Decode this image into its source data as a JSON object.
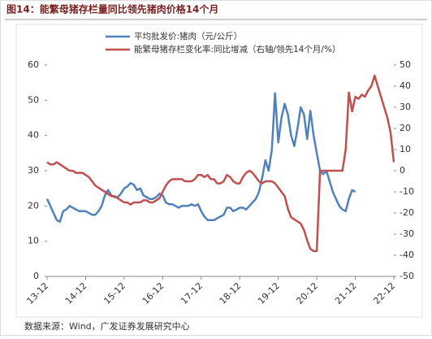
{
  "chart_data": {
    "type": "line",
    "title": "图14：能繁母猪存栏量同比领先猪肉价格14个月",
    "source": "数据来源：Wind，广发证券发展研究中心",
    "categories": [
      "13-12",
      null,
      null,
      null,
      null,
      null,
      null,
      null,
      null,
      null,
      null,
      null,
      "14-12",
      null,
      null,
      null,
      null,
      null,
      null,
      null,
      null,
      null,
      null,
      null,
      "15-12",
      null,
      null,
      null,
      null,
      null,
      null,
      null,
      null,
      null,
      null,
      null,
      "16-12",
      null,
      null,
      null,
      null,
      null,
      null,
      null,
      null,
      null,
      null,
      null,
      "17-12",
      null,
      null,
      null,
      null,
      null,
      null,
      null,
      null,
      null,
      null,
      null,
      "18-12",
      null,
      null,
      null,
      null,
      null,
      null,
      null,
      null,
      null,
      null,
      null,
      "19-12",
      null,
      null,
      null,
      null,
      null,
      null,
      null,
      null,
      null,
      null,
      null,
      "20-12",
      null,
      null,
      null,
      null,
      null,
      null,
      null,
      null,
      null,
      null,
      null,
      "21-12",
      null,
      null,
      null,
      null,
      null,
      null,
      null,
      null,
      null,
      null,
      null,
      "22-12"
    ],
    "series": [
      {
        "name": "平均批发价:猪肉（元/公斤）",
        "color": "#4f81bd",
        "axis": "y",
        "values": [
          22,
          20,
          18,
          16,
          15.5,
          18.5,
          19,
          20,
          19.5,
          19,
          18.5,
          18.5,
          18.5,
          18,
          17.5,
          17.5,
          18.5,
          20,
          23,
          24.5,
          23,
          22.5,
          22.5,
          23.5,
          25,
          25.5,
          26.5,
          26,
          24.5,
          25,
          23,
          22.5,
          22,
          22,
          22.5,
          23.5,
          23,
          21,
          20.5,
          20.5,
          20,
          19.5,
          20,
          20,
          20,
          20.5,
          20,
          20.5,
          18.5,
          17,
          16,
          16,
          16,
          16.5,
          17,
          17.5,
          19.5,
          19.5,
          18.5,
          19,
          19.5,
          19.5,
          19,
          20,
          21,
          22,
          24,
          28,
          33,
          30,
          36,
          52,
          38,
          45,
          49,
          46,
          40,
          37,
          42,
          48,
          46,
          39,
          47,
          40,
          35,
          30,
          29,
          30,
          27,
          24,
          22,
          20,
          19,
          18.5,
          22,
          24.5,
          24,
          null,
          null,
          null,
          null,
          null,
          null,
          null,
          null,
          null,
          null,
          null,
          null
        ]
      },
      {
        "name": "能繁母猪存栏变化率:同比增减（右轴/领先14个月/%）",
        "color": "#c0504d",
        "axis": "y2",
        "values": [
          4,
          3,
          3,
          4,
          3,
          2,
          1,
          0,
          0,
          -1,
          -1,
          -1,
          -2,
          -3,
          -5,
          -7,
          -8,
          -9,
          -10,
          -11,
          -12,
          -12,
          -13,
          -14,
          -15,
          -15,
          -16,
          -15,
          -15,
          -15,
          -14,
          -14,
          -15,
          -15,
          -14,
          -13,
          -10,
          -7,
          -5,
          -4,
          -4,
          -4,
          -4,
          -5,
          -5,
          -5,
          -4,
          -2,
          -2,
          -3,
          -2,
          -4,
          -4,
          -6,
          -6,
          -5,
          -2,
          -3,
          -5,
          -6,
          -6,
          -3,
          -1,
          0,
          -1,
          -3,
          -5,
          -6,
          -5,
          -5,
          -5,
          -6,
          -8,
          -10,
          -12,
          -18,
          -22,
          -23,
          -24,
          -25,
          -28,
          -33,
          -37,
          -38,
          -38,
          0,
          0,
          0,
          0,
          0,
          0,
          0,
          0,
          10,
          37,
          28,
          35,
          34,
          36,
          35,
          38,
          40,
          45,
          40,
          35,
          30,
          25,
          18,
          4
        ]
      }
    ],
    "ylim": [
      0,
      60
    ],
    "yticks": [
      0,
      10,
      20,
      30,
      40,
      50,
      60
    ],
    "y2lim": [
      -50,
      50
    ],
    "y2ticks": [
      -50,
      -40,
      -30,
      -20,
      -10,
      0,
      10,
      20,
      30,
      40,
      50
    ],
    "legend": "top"
  }
}
